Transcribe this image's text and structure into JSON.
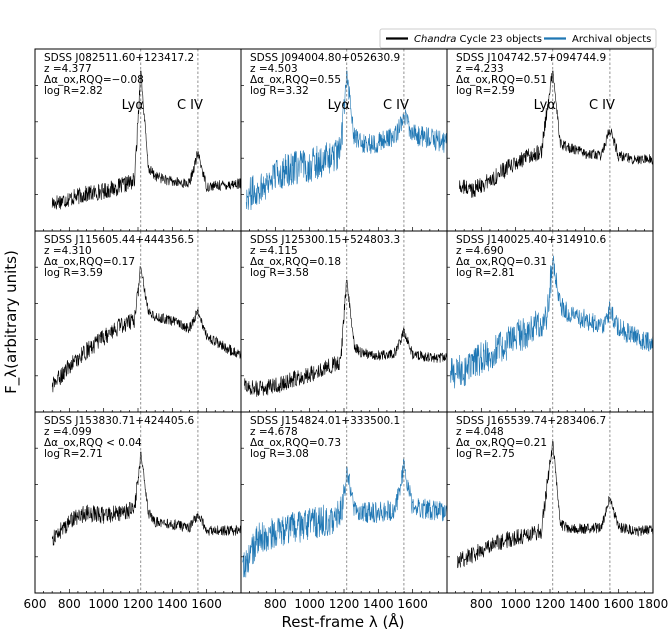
{
  "chart_data": {
    "type": "line",
    "xlabel": "Rest-frame λ (Å)",
    "ylabel": "F_λ(arbitrary units)",
    "xlim": [
      600,
      1800
    ],
    "xlim_first_column": [
      600,
      1800
    ],
    "x_ticks": [
      600,
      800,
      1000,
      1200,
      1400,
      1600,
      1800
    ],
    "x_ticks_other_columns": [
      800,
      1000,
      1200,
      1400,
      1600,
      1800
    ],
    "emission_lines": [
      {
        "label": "Lyα",
        "wavelength": 1216
      },
      {
        "label": "C IV",
        "wavelength": 1549
      }
    ],
    "legend": {
      "placement": "top-right",
      "entries": [
        {
          "label_italic": "Chandra",
          "label": " Cycle 23 objects",
          "color": "#000000"
        },
        {
          "label_italic": "",
          "label": "Archival objects",
          "color": "#1f77b4"
        }
      ]
    },
    "panels": [
      {
        "name": "SDSS J082511.60+123417.2",
        "z": "z =4.377",
        "dalpha": "Δα_ox,RQQ=−0.08",
        "logR": "log R=2.82",
        "color": "#000000",
        "show_line_labels": true,
        "spectrum": [
          [
            700,
            0.13
          ],
          [
            800,
            0.16
          ],
          [
            900,
            0.19
          ],
          [
            1000,
            0.21
          ],
          [
            1100,
            0.24
          ],
          [
            1180,
            0.28
          ],
          [
            1216,
            1.0
          ],
          [
            1260,
            0.36
          ],
          [
            1300,
            0.31
          ],
          [
            1400,
            0.27
          ],
          [
            1500,
            0.26
          ],
          [
            1549,
            0.46
          ],
          [
            1600,
            0.24
          ],
          [
            1700,
            0.25
          ],
          [
            1800,
            0.26
          ]
        ]
      },
      {
        "name": "SDSS J094004.80+052630.9",
        "z": "z =4.503",
        "dalpha": "Δα_ox,RQQ=0.55",
        "logR": "log R=3.32",
        "color": "#1f77b4",
        "show_line_labels": true,
        "spectrum": [
          [
            630,
            0.18
          ],
          [
            700,
            0.22
          ],
          [
            800,
            0.32
          ],
          [
            900,
            0.36
          ],
          [
            1000,
            0.38
          ],
          [
            1100,
            0.42
          ],
          [
            1180,
            0.46
          ],
          [
            1216,
            1.0
          ],
          [
            1260,
            0.56
          ],
          [
            1300,
            0.52
          ],
          [
            1400,
            0.53
          ],
          [
            1500,
            0.57
          ],
          [
            1549,
            0.72
          ],
          [
            1600,
            0.58
          ],
          [
            1700,
            0.56
          ],
          [
            1800,
            0.52
          ]
        ]
      },
      {
        "name": "SDSS J104742.57+094744.9",
        "z": "z =4.233",
        "dalpha": "Δα_ox,RQQ=0.51",
        "logR": "log R=2.59",
        "color": "#000000",
        "show_line_labels": true,
        "spectrum": [
          [
            670,
            0.24
          ],
          [
            750,
            0.22
          ],
          [
            850,
            0.28
          ],
          [
            950,
            0.36
          ],
          [
            1050,
            0.42
          ],
          [
            1150,
            0.48
          ],
          [
            1216,
            1.0
          ],
          [
            1260,
            0.52
          ],
          [
            1300,
            0.5
          ],
          [
            1400,
            0.46
          ],
          [
            1500,
            0.44
          ],
          [
            1549,
            0.62
          ],
          [
            1600,
            0.44
          ],
          [
            1700,
            0.42
          ],
          [
            1800,
            0.42
          ]
        ]
      },
      {
        "name": "SDSS J115605.44+444356.5",
        "z": "z =4.310",
        "dalpha": "Δα_ox,RQQ=0.17",
        "logR": "log R=3.59",
        "color": "#000000",
        "show_line_labels": false,
        "spectrum": [
          [
            700,
            0.12
          ],
          [
            800,
            0.25
          ],
          [
            900,
            0.35
          ],
          [
            1000,
            0.44
          ],
          [
            1100,
            0.52
          ],
          [
            1180,
            0.56
          ],
          [
            1216,
            0.9
          ],
          [
            1260,
            0.62
          ],
          [
            1300,
            0.58
          ],
          [
            1400,
            0.55
          ],
          [
            1500,
            0.5
          ],
          [
            1549,
            0.62
          ],
          [
            1600,
            0.45
          ],
          [
            1700,
            0.38
          ],
          [
            1800,
            0.32
          ]
        ]
      },
      {
        "name": "SDSS J125300.15+524803.3",
        "z": "z =4.115",
        "dalpha": "Δα_ox,RQQ=0.18",
        "logR": "log R=3.58",
        "color": "#000000",
        "show_line_labels": false,
        "spectrum": [
          [
            620,
            0.12
          ],
          [
            700,
            0.1
          ],
          [
            800,
            0.12
          ],
          [
            900,
            0.16
          ],
          [
            1000,
            0.2
          ],
          [
            1100,
            0.24
          ],
          [
            1180,
            0.28
          ],
          [
            1216,
            0.82
          ],
          [
            1260,
            0.38
          ],
          [
            1300,
            0.34
          ],
          [
            1400,
            0.32
          ],
          [
            1500,
            0.34
          ],
          [
            1549,
            0.48
          ],
          [
            1600,
            0.33
          ],
          [
            1700,
            0.31
          ],
          [
            1800,
            0.3
          ]
        ]
      },
      {
        "name": "SDSS J140025.40+314910.6",
        "z": "z =4.690",
        "dalpha": "Δα_ox,RQQ=0.31",
        "logR": "log R=2.81",
        "color": "#1f77b4",
        "show_line_labels": false,
        "spectrum": [
          [
            620,
            0.2
          ],
          [
            700,
            0.22
          ],
          [
            800,
            0.3
          ],
          [
            900,
            0.36
          ],
          [
            1000,
            0.44
          ],
          [
            1100,
            0.5
          ],
          [
            1180,
            0.56
          ],
          [
            1216,
            0.95
          ],
          [
            1260,
            0.66
          ],
          [
            1300,
            0.6
          ],
          [
            1400,
            0.56
          ],
          [
            1500,
            0.52
          ],
          [
            1549,
            0.62
          ],
          [
            1600,
            0.5
          ],
          [
            1700,
            0.44
          ],
          [
            1800,
            0.4
          ]
        ]
      },
      {
        "name": "SDSS J153830.71+424405.6",
        "z": "z =4.099",
        "dalpha": "Δα_ox,RQQ < 0.04",
        "logR": "log R=2.71",
        "color": "#000000",
        "show_line_labels": false,
        "spectrum": [
          [
            700,
            0.3
          ],
          [
            800,
            0.42
          ],
          [
            900,
            0.48
          ],
          [
            1000,
            0.46
          ],
          [
            1100,
            0.48
          ],
          [
            1180,
            0.5
          ],
          [
            1216,
            0.88
          ],
          [
            1260,
            0.48
          ],
          [
            1300,
            0.42
          ],
          [
            1400,
            0.4
          ],
          [
            1500,
            0.38
          ],
          [
            1549,
            0.47
          ],
          [
            1600,
            0.36
          ],
          [
            1700,
            0.36
          ],
          [
            1800,
            0.36
          ]
        ]
      },
      {
        "name": "SDSS J154824.01+333500.1",
        "z": "z =4.678",
        "dalpha": "Δα_ox,RQQ=0.73",
        "logR": "log R=3.08",
        "color": "#1f77b4",
        "show_line_labels": false,
        "spectrum": [
          [
            610,
            0.1
          ],
          [
            700,
            0.3
          ],
          [
            800,
            0.34
          ],
          [
            900,
            0.37
          ],
          [
            1000,
            0.4
          ],
          [
            1100,
            0.43
          ],
          [
            1180,
            0.46
          ],
          [
            1216,
            0.78
          ],
          [
            1260,
            0.5
          ],
          [
            1300,
            0.48
          ],
          [
            1400,
            0.48
          ],
          [
            1500,
            0.5
          ],
          [
            1549,
            0.78
          ],
          [
            1600,
            0.52
          ],
          [
            1700,
            0.5
          ],
          [
            1800,
            0.48
          ]
        ]
      },
      {
        "name": "SDSS J165539.74+283406.7",
        "z": "z =4.048",
        "dalpha": "Δα_ox,RQQ=0.21",
        "logR": "log R=2.75",
        "color": "#000000",
        "show_line_labels": false,
        "spectrum": [
          [
            660,
            0.16
          ],
          [
            750,
            0.2
          ],
          [
            850,
            0.26
          ],
          [
            950,
            0.3
          ],
          [
            1050,
            0.33
          ],
          [
            1150,
            0.36
          ],
          [
            1216,
            0.95
          ],
          [
            1260,
            0.4
          ],
          [
            1300,
            0.38
          ],
          [
            1400,
            0.37
          ],
          [
            1500,
            0.38
          ],
          [
            1549,
            0.58
          ],
          [
            1600,
            0.38
          ],
          [
            1700,
            0.36
          ],
          [
            1800,
            0.36
          ]
        ]
      }
    ]
  }
}
